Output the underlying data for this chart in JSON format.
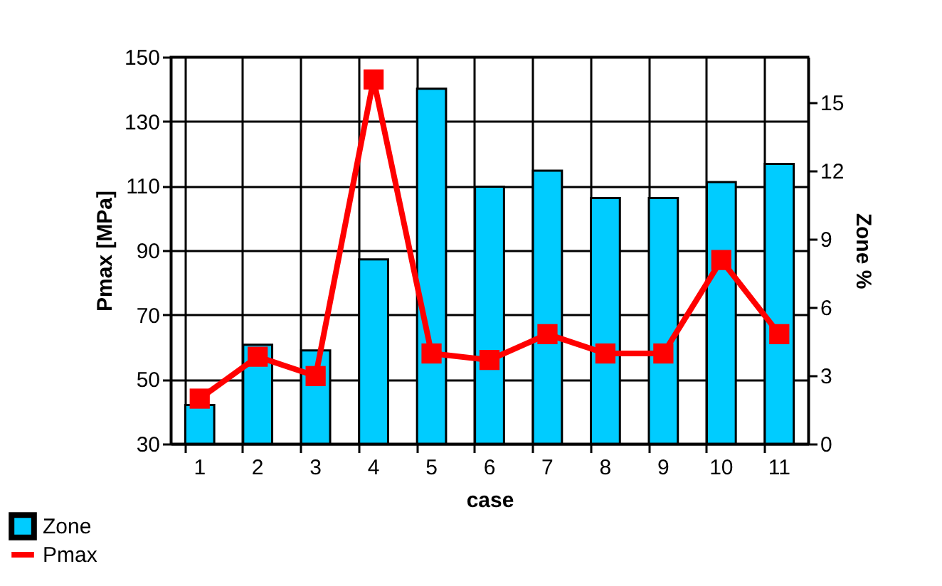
{
  "chart_data": {
    "type": "bar",
    "xlabel": "case",
    "ylabel": "Pmax [MPa]",
    "y2label": "Zone %",
    "categories": [
      "1",
      "2",
      "3",
      "4",
      "5",
      "6",
      "7",
      "8",
      "9",
      "10",
      "11"
    ],
    "series": [
      {
        "name": "Zone",
        "axis": "y2",
        "color": "#00ccff",
        "values": [
          1.7,
          4.35,
          4.1,
          8.1,
          15.6,
          11.3,
          12.0,
          10.8,
          10.8,
          11.5,
          12.3
        ]
      },
      {
        "name": "Pmax",
        "type": "line",
        "color": "#ff0000",
        "values": [
          44,
          57,
          51,
          143,
          58,
          56,
          64,
          58,
          58,
          87,
          64
        ]
      }
    ],
    "ylim": [
      30,
      150
    ],
    "yticks": [
      30,
      50,
      70,
      90,
      110,
      130,
      150
    ],
    "y2lim": [
      0,
      17
    ],
    "y2ticks": [
      0,
      3,
      6,
      9,
      12,
      15
    ],
    "grid": true,
    "legend": "bottom left",
    "marker": "square",
    "line_style": "solid"
  }
}
